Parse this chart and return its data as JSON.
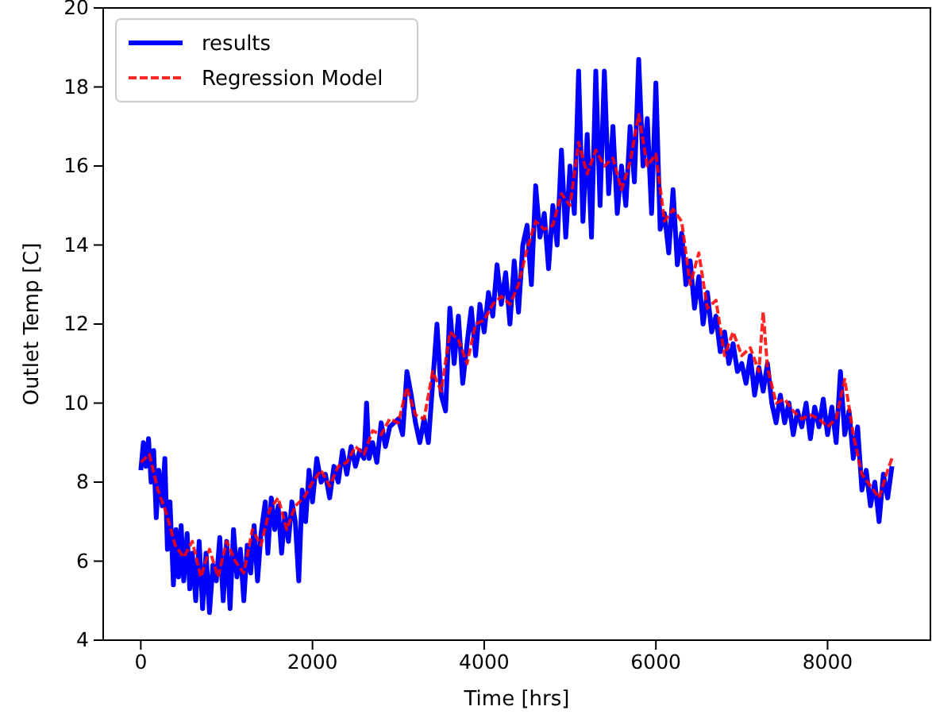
{
  "chart_data": {
    "type": "line",
    "xlabel": "Time [hrs]",
    "ylabel": "Outlet Temp [C]",
    "xlim": [
      -438,
      9198
    ],
    "xticks": [
      0,
      2000,
      4000,
      6000,
      8000
    ],
    "ylim": [
      4,
      20
    ],
    "yticks": [
      4,
      6,
      8,
      10,
      12,
      14,
      16,
      18,
      20
    ],
    "grid": false,
    "legend": "top left",
    "x": [
      0,
      30,
      60,
      90,
      120,
      150,
      180,
      210,
      250,
      280,
      310,
      340,
      380,
      410,
      440,
      470,
      500,
      540,
      570,
      600,
      640,
      680,
      720,
      760,
      800,
      840,
      880,
      920,
      960,
      1000,
      1040,
      1080,
      1120,
      1160,
      1200,
      1240,
      1280,
      1320,
      1360,
      1400,
      1450,
      1480,
      1520,
      1560,
      1600,
      1640,
      1680,
      1720,
      1760,
      1800,
      1840,
      1880,
      1920,
      1960,
      2000,
      2050,
      2100,
      2150,
      2200,
      2250,
      2300,
      2350,
      2400,
      2450,
      2500,
      2550,
      2600,
      2630,
      2660,
      2700,
      2750,
      2800,
      2850,
      2900,
      3000,
      3050,
      3100,
      3150,
      3200,
      3250,
      3300,
      3350,
      3400,
      3450,
      3500,
      3550,
      3600,
      3650,
      3700,
      3750,
      3800,
      3850,
      3900,
      3950,
      4000,
      4050,
      4100,
      4150,
      4200,
      4250,
      4300,
      4350,
      4400,
      4450,
      4500,
      4550,
      4600,
      4650,
      4700,
      4750,
      4800,
      4850,
      4900,
      4950,
      5000,
      5050,
      5100,
      5150,
      5200,
      5250,
      5300,
      5350,
      5400,
      5450,
      5500,
      5550,
      5600,
      5650,
      5700,
      5750,
      5800,
      5850,
      5900,
      5950,
      6000,
      6050,
      6100,
      6150,
      6200,
      6250,
      6300,
      6350,
      6400,
      6450,
      6500,
      6550,
      6600,
      6650,
      6700,
      6750,
      6800,
      6850,
      6900,
      6950,
      7000,
      7050,
      7100,
      7150,
      7200,
      7250,
      7300,
      7350,
      7400,
      7450,
      7500,
      7550,
      7600,
      7650,
      7700,
      7750,
      7800,
      7850,
      7900,
      7950,
      8000,
      8050,
      8100,
      8150,
      8200,
      8250,
      8300,
      8350,
      8400,
      8450,
      8500,
      8550,
      8600,
      8650,
      8700,
      8750
    ],
    "series": [
      {
        "name": "results",
        "color": "#0000ff",
        "line_style": "solid",
        "values": [
          8.3,
          9.0,
          8.4,
          9.1,
          8.0,
          8.8,
          7.1,
          8.3,
          7.4,
          8.6,
          6.3,
          7.5,
          5.4,
          6.8,
          5.6,
          6.9,
          5.5,
          6.7,
          5.3,
          6.2,
          5.0,
          6.5,
          4.8,
          6.2,
          4.7,
          5.9,
          5.5,
          6.6,
          5.0,
          6.5,
          4.8,
          6.8,
          5.6,
          6.3,
          5.0,
          6.4,
          5.7,
          6.9,
          5.5,
          6.7,
          7.5,
          6.2,
          7.6,
          6.8,
          7.4,
          6.2,
          7.2,
          6.5,
          7.5,
          7.0,
          5.5,
          7.8,
          7.0,
          8.3,
          7.5,
          8.6,
          8.0,
          8.2,
          7.6,
          8.4,
          8.0,
          8.8,
          8.2,
          8.9,
          8.4,
          8.8,
          8.6,
          10.0,
          8.6,
          9.0,
          8.5,
          9.5,
          8.9,
          9.4,
          9.6,
          9.2,
          10.8,
          10.2,
          9.5,
          9.0,
          9.6,
          9.0,
          10.5,
          12.0,
          10.2,
          9.8,
          12.4,
          11.0,
          12.2,
          10.5,
          11.5,
          12.4,
          11.2,
          12.5,
          11.8,
          12.8,
          12.2,
          13.5,
          12.5,
          13.3,
          12.0,
          13.6,
          12.3,
          14.0,
          14.5,
          13.0,
          15.5,
          14.2,
          14.8,
          13.4,
          15.0,
          14.0,
          16.4,
          14.2,
          16.0,
          14.8,
          18.4,
          14.6,
          16.8,
          14.2,
          18.4,
          15.0,
          18.4,
          15.3,
          17.0,
          14.8,
          16.0,
          15.0,
          17.0,
          15.6,
          18.7,
          16.0,
          17.2,
          14.8,
          18.1,
          14.4,
          14.8,
          13.8,
          15.4,
          13.5,
          14.3,
          13.0,
          13.6,
          12.4,
          13.2,
          12.0,
          12.8,
          11.8,
          12.2,
          11.3,
          11.8,
          11.0,
          11.5,
          10.8,
          11.0,
          10.5,
          11.2,
          10.2,
          10.9,
          10.3,
          11.0,
          10.0,
          9.5,
          10.2,
          9.5,
          10.0,
          9.2,
          9.8,
          9.4,
          10.0,
          9.1,
          9.9,
          9.4,
          10.1,
          9.2,
          9.9,
          9.0,
          10.8,
          9.2,
          9.8,
          8.6,
          9.4,
          7.8,
          8.3,
          7.4,
          8.0,
          7.0,
          8.2,
          7.6,
          8.4
        ]
      },
      {
        "name": "Regression Model",
        "color": "#ff0000",
        "line_style": "dashed",
        "x": [
          0,
          100,
          200,
          300,
          400,
          500,
          600,
          700,
          800,
          900,
          1000,
          1100,
          1200,
          1300,
          1400,
          1500,
          1600,
          1700,
          1800,
          1900,
          2000,
          2100,
          2200,
          2300,
          2400,
          2500,
          2600,
          2700,
          2800,
          2900,
          3000,
          3100,
          3200,
          3300,
          3400,
          3500,
          3600,
          3700,
          3800,
          3900,
          4000,
          4100,
          4200,
          4300,
          4400,
          4500,
          4600,
          4700,
          4800,
          4900,
          5000,
          5100,
          5200,
          5300,
          5400,
          5500,
          5600,
          5700,
          5800,
          5900,
          6000,
          6100,
          6200,
          6300,
          6400,
          6500,
          6600,
          6700,
          6800,
          6900,
          7000,
          7100,
          7200,
          7250,
          7300,
          7400,
          7500,
          7600,
          7700,
          7800,
          7900,
          8000,
          8100,
          8200,
          8300,
          8400,
          8500,
          8600,
          8700,
          8750
        ],
        "values": [
          8.5,
          8.7,
          7.8,
          7.2,
          6.4,
          6.1,
          6.5,
          5.6,
          6.3,
          5.6,
          6.5,
          6.0,
          5.7,
          6.8,
          6.4,
          7.3,
          7.6,
          6.8,
          7.4,
          7.6,
          8.0,
          8.3,
          7.9,
          8.4,
          8.5,
          8.9,
          8.7,
          9.3,
          9.2,
          9.6,
          9.5,
          10.4,
          9.7,
          9.6,
          10.8,
          10.3,
          11.8,
          11.6,
          11.0,
          12.0,
          12.1,
          12.5,
          12.7,
          12.5,
          13.0,
          13.9,
          14.6,
          14.4,
          14.5,
          15.3,
          15.0,
          16.6,
          15.8,
          16.4,
          16.0,
          16.2,
          15.4,
          16.1,
          17.3,
          16.0,
          16.3,
          14.6,
          14.9,
          14.6,
          13.0,
          13.8,
          12.4,
          12.6,
          11.2,
          11.8,
          11.2,
          11.4,
          10.8,
          12.3,
          10.9,
          10.0,
          10.1,
          9.8,
          9.6,
          9.7,
          9.6,
          9.4,
          9.6,
          10.6,
          9.2,
          8.2,
          7.9,
          7.6,
          8.3,
          8.6
        ]
      }
    ]
  }
}
